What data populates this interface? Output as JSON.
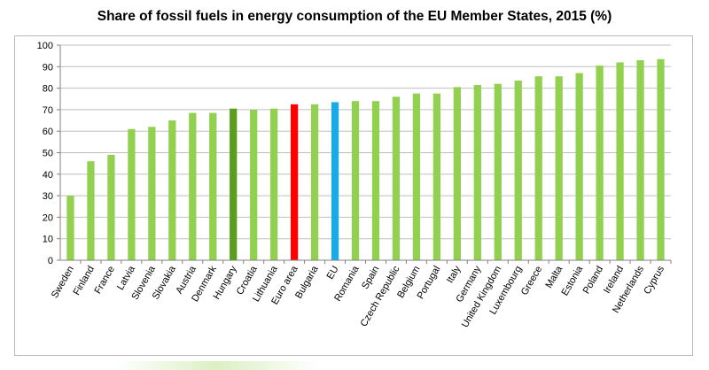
{
  "chart_data": {
    "type": "bar",
    "title": "Share of fossil fuels in energy consumption of the EU Member States, 2015 (%)",
    "xlabel": "",
    "ylabel": "",
    "ylim": [
      0,
      100
    ],
    "yticks": [
      0,
      10,
      20,
      30,
      40,
      50,
      60,
      70,
      80,
      90,
      100
    ],
    "grid": true,
    "categories": [
      "Sweden",
      "Finland",
      "France",
      "Latvia",
      "Slovenia",
      "Slovakia",
      "Austria",
      "Denmark",
      "Hungary",
      "Croatia",
      "Lithuania",
      "Euro area",
      "Bulgaria",
      "EU",
      "Romania",
      "Spain",
      "Czech Republic",
      "Belgium",
      "Portugal",
      "Italy",
      "Germany",
      "United Kingdom",
      "Luxembourg",
      "Greece",
      "Malta",
      "Estonia",
      "Poland",
      "Ireland",
      "Netherlands",
      "Cyprus"
    ],
    "values": [
      30,
      46,
      49,
      61,
      62,
      65,
      68.5,
      68.5,
      70.5,
      70,
      70.5,
      72.5,
      72.5,
      73.5,
      74,
      74,
      76,
      77.5,
      77.5,
      80.5,
      81.5,
      82,
      83.5,
      85.5,
      85.5,
      87,
      90.5,
      92,
      93,
      93.5
    ],
    "colors": {
      "default": "#92d050",
      "Hungary": "#5a9e1c",
      "Euro area": "#ff0000",
      "EU": "#1aabe6"
    }
  }
}
